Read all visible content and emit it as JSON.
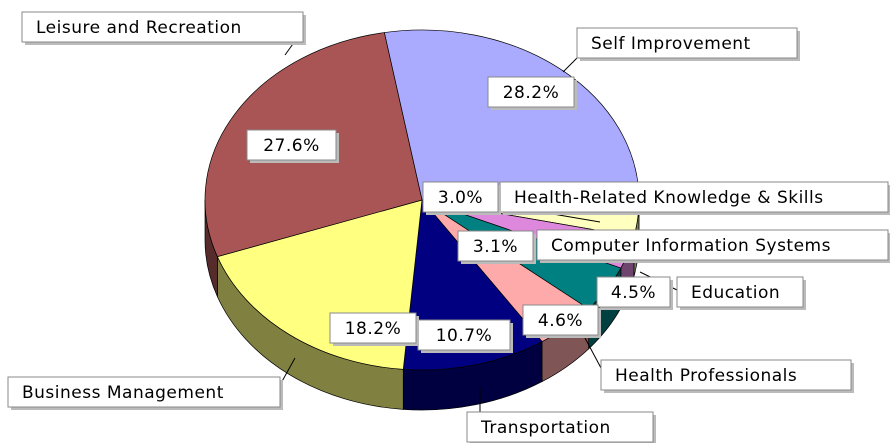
{
  "chart_data": {
    "type": "pie",
    "categories": [
      "Self Improvement",
      "Health-Related Knowledge & Skills",
      "Computer Information Systems",
      "Education",
      "Health Professionals",
      "Transportation",
      "Business Management",
      "Leisure and Recreation"
    ],
    "values": [
      28.2,
      3.0,
      3.1,
      4.5,
      4.6,
      10.7,
      18.2,
      27.6
    ],
    "value_labels": [
      "28.2%",
      "3.0%",
      "3.1%",
      "4.5%",
      "4.6%",
      "10.7%",
      "18.2%",
      "27.6%"
    ],
    "colors": [
      "#aaaaff",
      "#ffffc0",
      "#dd88dd",
      "#008080",
      "#ffaaaa",
      "#000080",
      "#ffff80",
      "#aa5555"
    ]
  }
}
